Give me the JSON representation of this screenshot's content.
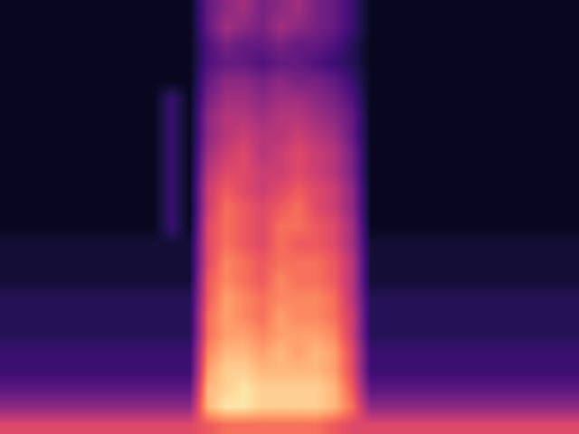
{
  "chart_data": {
    "type": "heatmap",
    "color": "magma",
    "color_range": [
      0,
      1
    ],
    "tick_labels": false,
    "cells": [
      [
        0.06,
        0.06,
        0.06,
        0.06,
        0.06,
        0.06,
        0.06,
        0.06,
        0.06,
        0.06,
        0.06,
        0.3,
        0.4,
        0.45,
        0.35,
        0.4,
        0.45,
        0.35,
        0.3,
        0.2,
        0.06,
        0.06,
        0.06,
        0.06,
        0.06,
        0.06,
        0.06,
        0.06,
        0.06,
        0.06,
        0.06,
        0.06
      ],
      [
        0.06,
        0.06,
        0.06,
        0.06,
        0.06,
        0.06,
        0.06,
        0.06,
        0.06,
        0.06,
        0.06,
        0.3,
        0.45,
        0.4,
        0.35,
        0.45,
        0.4,
        0.35,
        0.3,
        0.2,
        0.06,
        0.06,
        0.06,
        0.06,
        0.06,
        0.06,
        0.06,
        0.06,
        0.06,
        0.06,
        0.06,
        0.06
      ],
      [
        0.06,
        0.06,
        0.06,
        0.06,
        0.06,
        0.06,
        0.06,
        0.06,
        0.06,
        0.06,
        0.06,
        0.25,
        0.35,
        0.3,
        0.3,
        0.35,
        0.3,
        0.3,
        0.25,
        0.15,
        0.06,
        0.06,
        0.06,
        0.06,
        0.06,
        0.06,
        0.06,
        0.06,
        0.06,
        0.06,
        0.06,
        0.06
      ],
      [
        0.06,
        0.06,
        0.06,
        0.06,
        0.06,
        0.06,
        0.06,
        0.06,
        0.06,
        0.06,
        0.06,
        0.25,
        0.3,
        0.3,
        0.25,
        0.3,
        0.3,
        0.25,
        0.2,
        0.15,
        0.06,
        0.06,
        0.06,
        0.06,
        0.06,
        0.06,
        0.06,
        0.06,
        0.06,
        0.06,
        0.06,
        0.06
      ],
      [
        0.06,
        0.06,
        0.06,
        0.06,
        0.06,
        0.06,
        0.06,
        0.06,
        0.06,
        0.06,
        0.06,
        0.3,
        0.4,
        0.4,
        0.35,
        0.4,
        0.35,
        0.35,
        0.3,
        0.2,
        0.06,
        0.06,
        0.06,
        0.06,
        0.06,
        0.06,
        0.06,
        0.06,
        0.06,
        0.06,
        0.06,
        0.06
      ],
      [
        0.06,
        0.06,
        0.06,
        0.06,
        0.06,
        0.06,
        0.06,
        0.06,
        0.06,
        0.2,
        0.06,
        0.35,
        0.45,
        0.45,
        0.4,
        0.45,
        0.45,
        0.4,
        0.35,
        0.25,
        0.06,
        0.06,
        0.06,
        0.06,
        0.06,
        0.06,
        0.06,
        0.06,
        0.06,
        0.06,
        0.06,
        0.06
      ],
      [
        0.06,
        0.06,
        0.06,
        0.06,
        0.06,
        0.06,
        0.06,
        0.06,
        0.06,
        0.2,
        0.06,
        0.4,
        0.5,
        0.5,
        0.45,
        0.5,
        0.5,
        0.45,
        0.4,
        0.3,
        0.06,
        0.06,
        0.06,
        0.06,
        0.06,
        0.06,
        0.06,
        0.06,
        0.06,
        0.06,
        0.06,
        0.06
      ],
      [
        0.06,
        0.06,
        0.06,
        0.06,
        0.06,
        0.06,
        0.06,
        0.06,
        0.06,
        0.2,
        0.06,
        0.4,
        0.5,
        0.55,
        0.5,
        0.5,
        0.55,
        0.5,
        0.45,
        0.3,
        0.06,
        0.06,
        0.06,
        0.06,
        0.06,
        0.06,
        0.06,
        0.06,
        0.06,
        0.06,
        0.06,
        0.06
      ],
      [
        0.06,
        0.06,
        0.06,
        0.06,
        0.06,
        0.06,
        0.06,
        0.06,
        0.06,
        0.2,
        0.06,
        0.45,
        0.55,
        0.6,
        0.5,
        0.55,
        0.6,
        0.55,
        0.5,
        0.35,
        0.06,
        0.06,
        0.06,
        0.06,
        0.06,
        0.06,
        0.06,
        0.06,
        0.06,
        0.06,
        0.06,
        0.06
      ],
      [
        0.06,
        0.06,
        0.06,
        0.06,
        0.06,
        0.06,
        0.06,
        0.06,
        0.06,
        0.2,
        0.06,
        0.5,
        0.6,
        0.6,
        0.55,
        0.55,
        0.6,
        0.55,
        0.5,
        0.35,
        0.06,
        0.06,
        0.06,
        0.06,
        0.06,
        0.06,
        0.06,
        0.06,
        0.06,
        0.06,
        0.06,
        0.06
      ],
      [
        0.06,
        0.06,
        0.06,
        0.06,
        0.06,
        0.06,
        0.06,
        0.06,
        0.06,
        0.2,
        0.06,
        0.55,
        0.65,
        0.6,
        0.55,
        0.6,
        0.65,
        0.6,
        0.55,
        0.4,
        0.06,
        0.06,
        0.06,
        0.06,
        0.06,
        0.06,
        0.06,
        0.06,
        0.06,
        0.06,
        0.06,
        0.06
      ],
      [
        0.06,
        0.06,
        0.06,
        0.06,
        0.06,
        0.06,
        0.06,
        0.06,
        0.06,
        0.2,
        0.06,
        0.55,
        0.7,
        0.65,
        0.6,
        0.65,
        0.7,
        0.6,
        0.55,
        0.4,
        0.06,
        0.06,
        0.06,
        0.06,
        0.06,
        0.06,
        0.06,
        0.06,
        0.06,
        0.06,
        0.06,
        0.06
      ],
      [
        0.06,
        0.06,
        0.06,
        0.06,
        0.06,
        0.06,
        0.06,
        0.06,
        0.06,
        0.2,
        0.06,
        0.6,
        0.7,
        0.65,
        0.6,
        0.7,
        0.7,
        0.65,
        0.6,
        0.45,
        0.06,
        0.06,
        0.06,
        0.06,
        0.06,
        0.06,
        0.06,
        0.06,
        0.06,
        0.06,
        0.06,
        0.06
      ],
      [
        0.1,
        0.1,
        0.1,
        0.1,
        0.1,
        0.1,
        0.1,
        0.1,
        0.1,
        0.1,
        0.1,
        0.6,
        0.7,
        0.65,
        0.6,
        0.7,
        0.65,
        0.65,
        0.6,
        0.45,
        0.1,
        0.1,
        0.1,
        0.1,
        0.1,
        0.1,
        0.1,
        0.1,
        0.1,
        0.1,
        0.1,
        0.1
      ],
      [
        0.1,
        0.1,
        0.1,
        0.1,
        0.1,
        0.1,
        0.1,
        0.1,
        0.1,
        0.1,
        0.1,
        0.6,
        0.75,
        0.7,
        0.65,
        0.7,
        0.7,
        0.7,
        0.65,
        0.5,
        0.1,
        0.1,
        0.1,
        0.1,
        0.1,
        0.1,
        0.1,
        0.1,
        0.1,
        0.1,
        0.1,
        0.1
      ],
      [
        0.1,
        0.1,
        0.1,
        0.1,
        0.1,
        0.1,
        0.1,
        0.1,
        0.1,
        0.1,
        0.1,
        0.65,
        0.75,
        0.7,
        0.65,
        0.75,
        0.7,
        0.7,
        0.65,
        0.5,
        0.1,
        0.1,
        0.1,
        0.1,
        0.1,
        0.1,
        0.1,
        0.1,
        0.1,
        0.1,
        0.1,
        0.1
      ],
      [
        0.15,
        0.15,
        0.15,
        0.15,
        0.15,
        0.15,
        0.15,
        0.15,
        0.15,
        0.15,
        0.15,
        0.65,
        0.8,
        0.75,
        0.7,
        0.75,
        0.75,
        0.75,
        0.7,
        0.5,
        0.15,
        0.15,
        0.15,
        0.15,
        0.15,
        0.15,
        0.15,
        0.15,
        0.15,
        0.15,
        0.15,
        0.15
      ],
      [
        0.15,
        0.15,
        0.15,
        0.15,
        0.15,
        0.15,
        0.15,
        0.15,
        0.15,
        0.15,
        0.15,
        0.7,
        0.8,
        0.75,
        0.7,
        0.8,
        0.75,
        0.75,
        0.7,
        0.55,
        0.15,
        0.15,
        0.15,
        0.15,
        0.15,
        0.15,
        0.15,
        0.15,
        0.15,
        0.15,
        0.15,
        0.15
      ],
      [
        0.15,
        0.15,
        0.15,
        0.15,
        0.15,
        0.15,
        0.15,
        0.15,
        0.15,
        0.15,
        0.15,
        0.7,
        0.8,
        0.8,
        0.75,
        0.8,
        0.8,
        0.8,
        0.75,
        0.55,
        0.15,
        0.15,
        0.15,
        0.15,
        0.15,
        0.15,
        0.15,
        0.15,
        0.15,
        0.15,
        0.15,
        0.15
      ],
      [
        0.2,
        0.2,
        0.2,
        0.2,
        0.2,
        0.2,
        0.2,
        0.2,
        0.2,
        0.2,
        0.2,
        0.75,
        0.85,
        0.85,
        0.8,
        0.85,
        0.8,
        0.85,
        0.8,
        0.6,
        0.2,
        0.2,
        0.2,
        0.2,
        0.2,
        0.2,
        0.2,
        0.2,
        0.2,
        0.2,
        0.2,
        0.2
      ],
      [
        0.2,
        0.2,
        0.2,
        0.2,
        0.2,
        0.2,
        0.2,
        0.2,
        0.2,
        0.2,
        0.2,
        0.8,
        0.9,
        0.9,
        0.85,
        0.85,
        0.85,
        0.85,
        0.8,
        0.6,
        0.2,
        0.2,
        0.2,
        0.2,
        0.2,
        0.2,
        0.2,
        0.2,
        0.2,
        0.2,
        0.2,
        0.2
      ],
      [
        0.28,
        0.28,
        0.28,
        0.28,
        0.28,
        0.28,
        0.28,
        0.28,
        0.28,
        0.28,
        0.28,
        0.85,
        0.9,
        0.95,
        0.9,
        0.9,
        0.9,
        0.9,
        0.85,
        0.65,
        0.28,
        0.28,
        0.28,
        0.28,
        0.28,
        0.28,
        0.28,
        0.28,
        0.28,
        0.28,
        0.28,
        0.28
      ],
      [
        0.4,
        0.4,
        0.4,
        0.4,
        0.4,
        0.4,
        0.4,
        0.4,
        0.4,
        0.4,
        0.4,
        0.85,
        0.95,
        0.95,
        0.9,
        0.9,
        0.9,
        0.9,
        0.85,
        0.7,
        0.4,
        0.4,
        0.4,
        0.4,
        0.4,
        0.4,
        0.4,
        0.4,
        0.4,
        0.4,
        0.4,
        0.4
      ],
      [
        0.6,
        0.6,
        0.6,
        0.6,
        0.6,
        0.6,
        0.6,
        0.6,
        0.6,
        0.6,
        0.6,
        0.65,
        0.7,
        0.7,
        0.7,
        0.7,
        0.7,
        0.7,
        0.65,
        0.6,
        0.6,
        0.6,
        0.6,
        0.6,
        0.6,
        0.6,
        0.6,
        0.6,
        0.6,
        0.6,
        0.6,
        0.6
      ]
    ]
  }
}
